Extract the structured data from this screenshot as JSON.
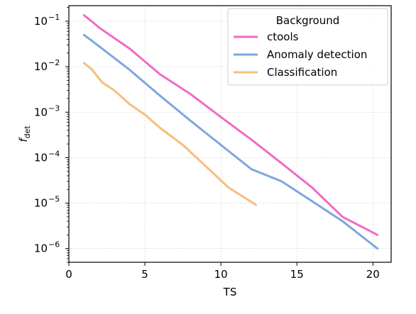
{
  "chart_data": {
    "type": "line",
    "title": "",
    "xlabel": "TS",
    "ylabel_main": "f",
    "ylabel_sub": "det",
    "xlim": [
      0,
      21.2
    ],
    "ylim": [
      5e-07,
      0.22
    ],
    "yscale": "log",
    "grid": true,
    "x_ticks": [
      0,
      5,
      10,
      15,
      20
    ],
    "x_tick_labels": [
      "0",
      "5",
      "10",
      "15",
      "20"
    ],
    "y_ticks": [
      {
        "value": 0.1,
        "base": "10",
        "exp": "−1"
      },
      {
        "value": 0.01,
        "base": "10",
        "exp": "−2"
      },
      {
        "value": 0.001,
        "base": "10",
        "exp": "−3"
      },
      {
        "value": 0.0001,
        "base": "10",
        "exp": "−4"
      },
      {
        "value": 1e-05,
        "base": "10",
        "exp": "−5"
      },
      {
        "value": 1e-06,
        "base": "10",
        "exp": "−6"
      }
    ],
    "legend": {
      "title": "Background",
      "placement": "top-right"
    },
    "series": [
      {
        "name": "ctools",
        "color": "#f06bc3",
        "x": [
          1.0,
          1.5,
          2.0,
          4.0,
          6.0,
          8.0,
          10.0,
          12.0,
          14.0,
          16.0,
          18.0,
          20.3
        ],
        "y": [
          0.135,
          0.1,
          0.072,
          0.025,
          0.0068,
          0.0025,
          0.00078,
          0.00025,
          7.5e-05,
          2.2e-05,
          5e-06,
          2e-06
        ]
      },
      {
        "name": "Anomaly detection",
        "color": "#7ea6df",
        "x": [
          1.0,
          2.0,
          4.0,
          6.0,
          8.0,
          10.0,
          12.0,
          14.0,
          16.0,
          18.0,
          20.3
        ],
        "y": [
          0.05,
          0.028,
          0.0085,
          0.0023,
          0.00065,
          0.00019,
          5.6e-05,
          3e-05,
          1.1e-05,
          4e-06,
          1e-06
        ]
      },
      {
        "name": "Classification",
        "color": "#f7bd7e",
        "x": [
          1.0,
          1.5,
          2.2,
          3.0,
          4.0,
          5.0,
          6.0,
          7.5,
          9.0,
          10.5,
          12.3
        ],
        "y": [
          0.012,
          0.0088,
          0.0045,
          0.003,
          0.0015,
          0.00088,
          0.00045,
          0.00019,
          6.5e-05,
          2.2e-05,
          9.2e-06
        ]
      }
    ]
  }
}
